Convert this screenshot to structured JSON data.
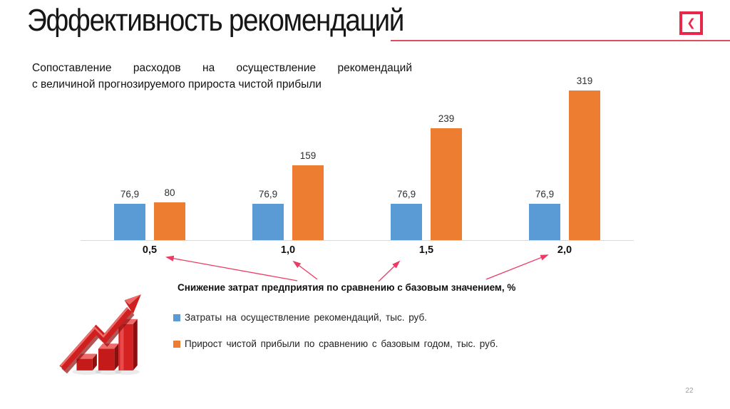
{
  "header": {
    "title": "Эффективность рекомендаций",
    "nav_icon": "back-chevron",
    "nav_glyph": "❮"
  },
  "description": {
    "line1": "Сопоставление расходов на осуществление рекомендаций",
    "line2": "с величиной прогнозируемого прироста чистой прибыли"
  },
  "chart_data": {
    "type": "bar",
    "categories": [
      "0,5",
      "1,0",
      "1,5",
      "2,0"
    ],
    "series": [
      {
        "name": "Затраты на осуществление рекомендаций, тыс. руб.",
        "color": "#5b9bd5",
        "values": [
          76.9,
          76.9,
          76.9,
          76.9
        ],
        "labels": [
          "76,9",
          "76,9",
          "76,9",
          "76,9"
        ]
      },
      {
        "name": "Прирост чистой прибыли по сравнению с базовым годом, тыс. руб.",
        "color": "#ed7d31",
        "values": [
          80,
          159,
          239,
          319
        ],
        "labels": [
          "80",
          "159",
          "239",
          "319"
        ]
      }
    ],
    "xlabel": "Снижение затрат предприятия по сравнению с базовым значением, %",
    "ylim": [
      0,
      340
    ],
    "grid": false,
    "value_labels": true,
    "legend_position": "bottom-left"
  },
  "legend": {
    "items": [
      {
        "label": "Затраты на осуществление рекомендаций, тыс. руб.",
        "color": "#5b9bd5"
      },
      {
        "label": "Прирост чистой прибыли по сравнению с базовым годом, тыс. руб.",
        "color": "#ed7d31"
      }
    ]
  },
  "footer": {
    "page_number": "22"
  },
  "colors": {
    "accent_red": "#e8274b",
    "title_rule": "#dd4f5e",
    "arrow": "#ed3a64",
    "axis_line": "#d9d9d9",
    "bar_blue": "#5b9bd5",
    "bar_orange": "#ed7d31"
  }
}
